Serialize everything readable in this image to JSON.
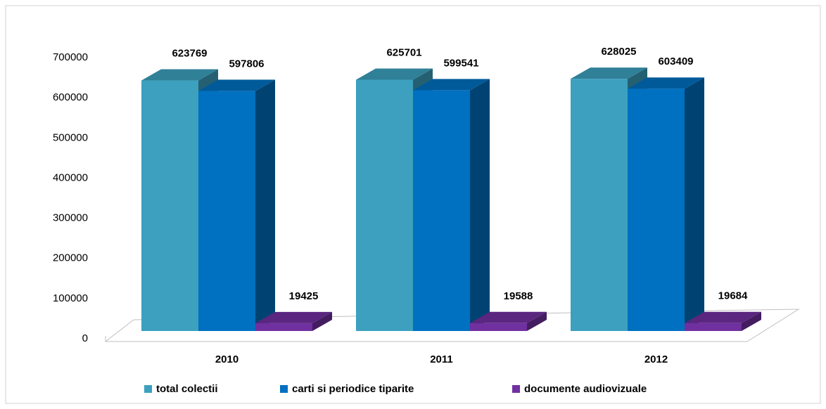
{
  "chart_data": {
    "type": "bar3d",
    "categories": [
      "2010",
      "2011",
      "2012"
    ],
    "series": [
      {
        "name": "total colectii",
        "color": "#3ca0be",
        "values": [
          623769,
          625701,
          628025
        ]
      },
      {
        "name": "carti si periodice tiparite",
        "color": "#0070c0",
        "values": [
          597806,
          599541,
          603409
        ]
      },
      {
        "name": "documente audiovizuale",
        "color": "#7030a0",
        "values": [
          19425,
          19588,
          19684
        ]
      }
    ],
    "ylim": [
      0,
      700000
    ],
    "yticks": [
      0,
      100000,
      200000,
      300000,
      400000,
      500000,
      600000,
      700000
    ],
    "grid": false,
    "legend": "bottom"
  }
}
